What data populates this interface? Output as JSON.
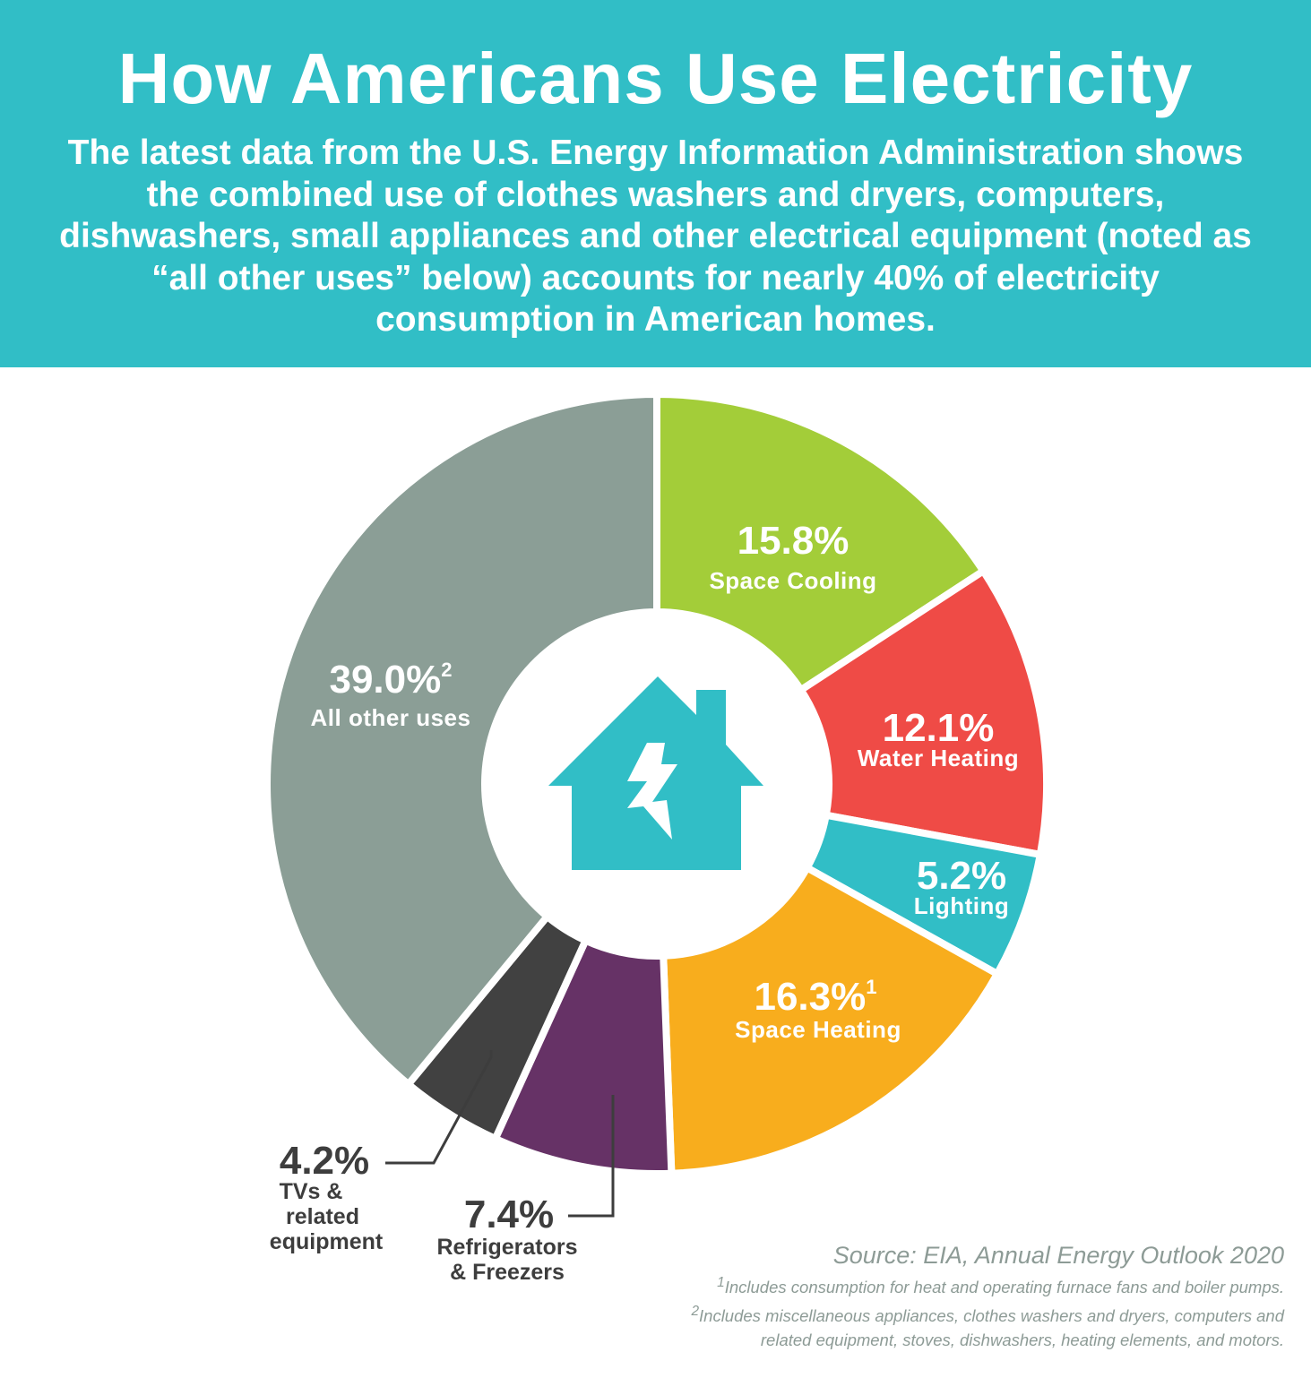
{
  "header": {
    "title": "How Americans Use Electricity",
    "subtitle": "The latest data from the U.S. Energy Information Administration shows the combined use of clothes washers and dryers, computers, dishwashers, small appliances and other electrical equipment (noted as “all other uses” below) accounts for nearly 40% of electricity consumption in American homes."
  },
  "chart_data": {
    "type": "pie",
    "title": "",
    "center_icon": "house-lightning-icon",
    "slices": [
      {
        "label": "Space Cooling",
        "value": 15.8,
        "display": "15.8%",
        "footnote": "",
        "color": "#a3cd39"
      },
      {
        "label": "Water Heating",
        "value": 12.1,
        "display": "12.1%",
        "footnote": "",
        "color": "#ef4b46"
      },
      {
        "label": "Lighting",
        "value": 5.2,
        "display": "5.2%",
        "footnote": "",
        "color": "#31bec6"
      },
      {
        "label": "Space Heating",
        "value": 16.3,
        "display": "16.3%",
        "footnote": "1",
        "color": "#f8ad1d"
      },
      {
        "label": "Refrigerators & Freezers",
        "value": 7.4,
        "display": "7.4%",
        "footnote": "",
        "color": "#663266"
      },
      {
        "label": "TVs & related equipment",
        "value": 4.2,
        "display": "4.2%",
        "footnote": "",
        "color": "#414141"
      },
      {
        "label": "All other uses",
        "value": 39.0,
        "display": "39.0%",
        "footnote": "2",
        "color": "#8b9e96"
      }
    ],
    "outside_labels": {
      "refrigerators": {
        "pct": "7.4%",
        "lines": [
          "Refrigerators",
          "& Freezers"
        ]
      },
      "tvs": {
        "pct": "4.2%",
        "lines": [
          "TVs &",
          "related",
          "equipment"
        ]
      }
    }
  },
  "source": "Source: EIA, Annual Energy Outlook 2020",
  "footnotes": [
    {
      "mark": "1",
      "text": "Includes consumption for heat and operating furnace fans and boiler pumps."
    },
    {
      "mark": "2",
      "text": "Includes miscellaneous appliances, clothes washers and dryers, computers and"
    },
    {
      "mark": "",
      "text": "related equipment, stoves, dishwashers, heating elements, and motors."
    }
  ]
}
